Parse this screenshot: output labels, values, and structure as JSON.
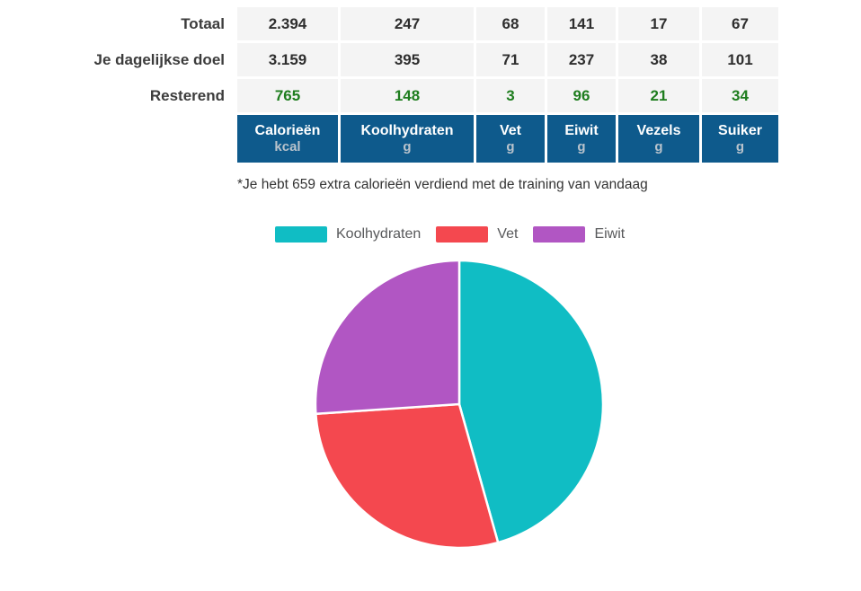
{
  "summary_table": {
    "columns": [
      {
        "label": "Calorieën",
        "unit": "kcal"
      },
      {
        "label": "Koolhydraten",
        "unit": "g"
      },
      {
        "label": "Vet",
        "unit": "g"
      },
      {
        "label": "Eiwit",
        "unit": "g"
      },
      {
        "label": "Vezels",
        "unit": "g"
      },
      {
        "label": "Suiker",
        "unit": "g"
      }
    ],
    "rows": [
      {
        "label": "Totaal",
        "values": [
          "2.394",
          "247",
          "68",
          "141",
          "17",
          "67"
        ]
      },
      {
        "label": "Je dagelijkse doel",
        "values": [
          "3.159",
          "395",
          "71",
          "237",
          "38",
          "101"
        ]
      },
      {
        "label": "Resterend",
        "values": [
          "765",
          "148",
          "3",
          "96",
          "21",
          "34"
        ]
      }
    ]
  },
  "note": "*Je hebt 659 extra calorieën verdiend met de training van vandaag",
  "chart_data": {
    "type": "pie",
    "title": "",
    "labels": [
      "Koolhydraten",
      "Vet",
      "Eiwit"
    ],
    "values": [
      45.7,
      28.3,
      26.1
    ],
    "unit": "percent of calories",
    "colors": [
      "#10BDC4",
      "#F4484F",
      "#B156C3"
    ],
    "start_angle_deg": 0,
    "direction": "clockwise",
    "slice_border_color": "#FFFFFF",
    "legend_position": "top"
  },
  "colors": {
    "header_bg": "#0E5A8C",
    "header_text": "#FFFFFF",
    "header_unit_text": "#B9C3CC",
    "cell_bg": "#F4F4F4",
    "value_text": "#2E2E2E",
    "remaining_value_text": "#1E7D1E",
    "row_label_text": "#3C3C3C",
    "note_text": "#333333",
    "legend_label_text": "#58595B"
  }
}
